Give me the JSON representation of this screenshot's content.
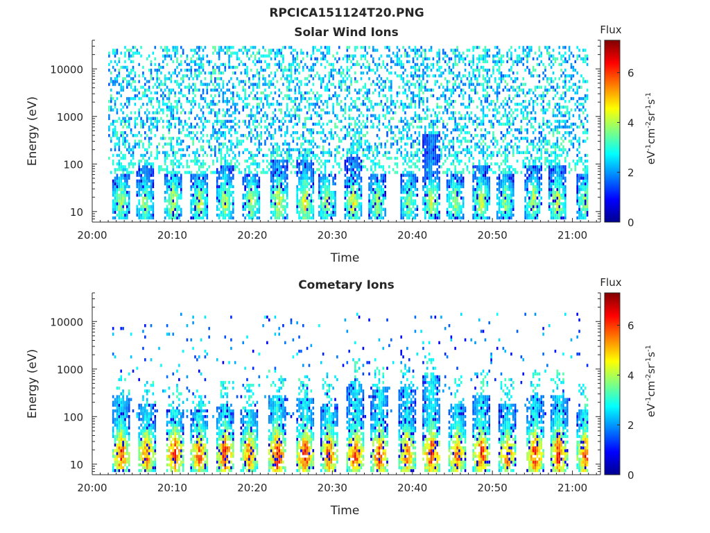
{
  "figure": {
    "title": "RPCICA151124T20.PNG"
  },
  "colormap": {
    "name": "jet",
    "stops": [
      "#00008f",
      "#0000ff",
      "#0080ff",
      "#00ffff",
      "#80ff80",
      "#ffff00",
      "#ff8000",
      "#ff0000",
      "#800000"
    ]
  },
  "chart_data": [
    {
      "type": "heatmap",
      "title": "Solar Wind Ions",
      "xlabel": "Time",
      "ylabel": "Energy (eV)",
      "x_unit": "minutes after 20:00",
      "xlim": [
        0,
        63.5
      ],
      "x_ticks": [
        0,
        10,
        20,
        30,
        40,
        50,
        60
      ],
      "x_tick_labels": [
        "20:00",
        "20:10",
        "20:20",
        "20:30",
        "20:40",
        "20:50",
        "21:00"
      ],
      "y_scale": "log",
      "ylim": [
        6,
        40000
      ],
      "y_ticks": [
        10,
        100,
        1000,
        10000
      ],
      "y_tick_labels": [
        "10",
        "100",
        "1000",
        "10000"
      ],
      "data_xrange": [
        2,
        62
      ],
      "colorbar": {
        "title": "Flux",
        "label": "eV-1cm-2sr-1s-1",
        "range": [
          0,
          7.3
        ],
        "ticks": [
          0,
          2,
          4,
          6
        ],
        "tick_labels": [
          "0",
          "2",
          "4",
          "6"
        ]
      },
      "bursts": [
        {
          "t": 3.5,
          "peak_flux": 4.2,
          "top_energy": 60
        },
        {
          "t": 6.5,
          "peak_flux": 4.0,
          "top_energy": 90
        },
        {
          "t": 10,
          "peak_flux": 4.5,
          "top_energy": 60
        },
        {
          "t": 13.3,
          "peak_flux": 4.3,
          "top_energy": 60
        },
        {
          "t": 16.5,
          "peak_flux": 4.4,
          "top_energy": 90
        },
        {
          "t": 19.8,
          "peak_flux": 4.2,
          "top_energy": 60
        },
        {
          "t": 23.2,
          "peak_flux": 4.8,
          "top_energy": 130
        },
        {
          "t": 26.5,
          "peak_flux": 4.9,
          "top_energy": 120
        },
        {
          "t": 29.2,
          "peak_flux": 4.3,
          "top_energy": 60
        },
        {
          "t": 32.5,
          "peak_flux": 4.6,
          "top_energy": 150
        },
        {
          "t": 35.5,
          "peak_flux": 4.2,
          "top_energy": 60
        },
        {
          "t": 39.5,
          "peak_flux": 4.0,
          "top_energy": 60
        },
        {
          "t": 42.3,
          "peak_flux": 4.5,
          "top_energy": 400
        },
        {
          "t": 45.2,
          "peak_flux": 4.1,
          "top_energy": 60
        },
        {
          "t": 48.5,
          "peak_flux": 4.4,
          "top_energy": 90
        },
        {
          "t": 51.5,
          "peak_flux": 4.0,
          "top_energy": 60
        },
        {
          "t": 55,
          "peak_flux": 4.3,
          "top_energy": 90
        },
        {
          "t": 58,
          "peak_flux": 4.6,
          "top_energy": 100
        },
        {
          "t": 61.5,
          "peak_flux": 4.2,
          "top_energy": 60
        }
      ],
      "background": {
        "energy_range": [
          150,
          30000
        ],
        "flux_range": [
          1.5,
          3.5
        ],
        "fill_fraction": 0.38
      }
    },
    {
      "type": "heatmap",
      "title": "Cometary Ions",
      "xlabel": "Time",
      "ylabel": "Energy (eV)",
      "x_unit": "minutes after 20:00",
      "xlim": [
        0,
        63.5
      ],
      "x_ticks": [
        0,
        10,
        20,
        30,
        40,
        50,
        60
      ],
      "x_tick_labels": [
        "20:00",
        "20:10",
        "20:20",
        "20:30",
        "20:40",
        "20:50",
        "21:00"
      ],
      "y_scale": "log",
      "ylim": [
        6,
        40000
      ],
      "y_ticks": [
        10,
        100,
        1000,
        10000
      ],
      "y_tick_labels": [
        "10",
        "100",
        "1000",
        "10000"
      ],
      "data_xrange": [
        2,
        62
      ],
      "colorbar": {
        "title": "Flux",
        "label": "eV-1cm-2sr-1s-1",
        "range": [
          0,
          7.3
        ],
        "ticks": [
          0,
          2,
          4,
          6
        ],
        "tick_labels": [
          "0",
          "2",
          "4",
          "6"
        ]
      },
      "bursts": [
        {
          "t": 3.5,
          "peak_flux": 6.3,
          "top_energy": 300
        },
        {
          "t": 6.7,
          "peak_flux": 6.1,
          "top_energy": 200
        },
        {
          "t": 10.2,
          "peak_flux": 6.6,
          "top_energy": 150
        },
        {
          "t": 13.3,
          "peak_flux": 6.2,
          "top_energy": 150
        },
        {
          "t": 16.5,
          "peak_flux": 6.5,
          "top_energy": 200
        },
        {
          "t": 19.5,
          "peak_flux": 6.1,
          "top_energy": 150
        },
        {
          "t": 23,
          "peak_flux": 6.8,
          "top_energy": 300
        },
        {
          "t": 26.5,
          "peak_flux": 6.7,
          "top_energy": 250
        },
        {
          "t": 29.5,
          "peak_flux": 6.3,
          "top_energy": 200
        },
        {
          "t": 32.8,
          "peak_flux": 6.6,
          "top_energy": 500
        },
        {
          "t": 35.8,
          "peak_flux": 6.5,
          "top_energy": 400
        },
        {
          "t": 39.2,
          "peak_flux": 6.2,
          "top_energy": 400
        },
        {
          "t": 42.3,
          "peak_flux": 6.7,
          "top_energy": 700
        },
        {
          "t": 45.5,
          "peak_flux": 6.2,
          "top_energy": 200
        },
        {
          "t": 48.5,
          "peak_flux": 6.4,
          "top_energy": 300
        },
        {
          "t": 51.8,
          "peak_flux": 6.0,
          "top_energy": 200
        },
        {
          "t": 55.2,
          "peak_flux": 6.5,
          "top_energy": 300
        },
        {
          "t": 58.2,
          "peak_flux": 6.7,
          "top_energy": 300
        },
        {
          "t": 61.5,
          "peak_flux": 6.3,
          "top_energy": 150
        }
      ],
      "background": {
        "energy_range": [
          100,
          15000
        ],
        "flux_range": [
          0.8,
          2.8
        ],
        "fill_fraction": 0.05
      }
    }
  ]
}
